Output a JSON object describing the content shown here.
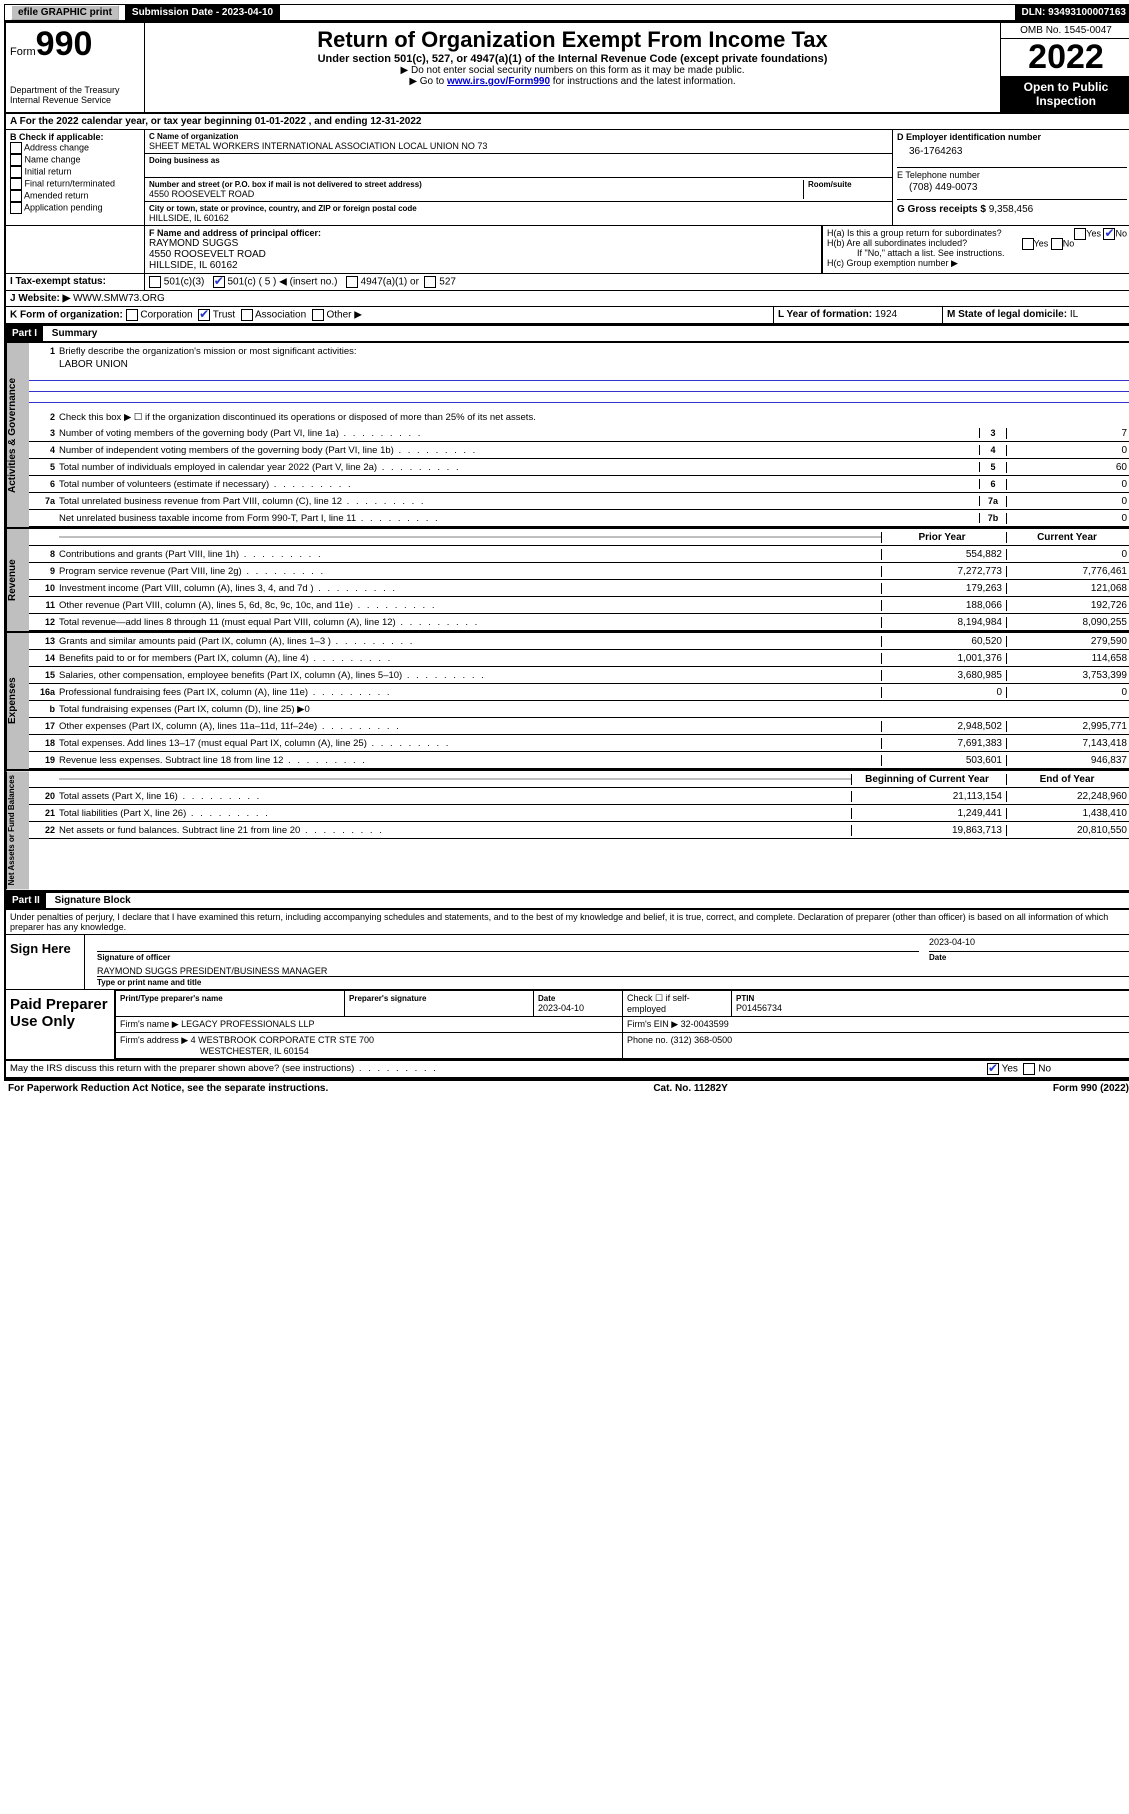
{
  "topbar": {
    "efile": "efile GRAPHIC print",
    "sub_label": "Submission Date - 2023-04-10",
    "dln": "DLN: 93493100007163"
  },
  "header": {
    "form_word": "Form",
    "form_num": "990",
    "title": "Return of Organization Exempt From Income Tax",
    "subtitle": "Under section 501(c), 527, or 4947(a)(1) of the Internal Revenue Code (except private foundations)",
    "note1": "▶ Do not enter social security numbers on this form as it may be made public.",
    "note2_pre": "▶ Go to ",
    "note2_link": "www.irs.gov/Form990",
    "note2_post": " for instructions and the latest information.",
    "dept": "Department of the Treasury",
    "irs": "Internal Revenue Service",
    "omb": "OMB No. 1545-0047",
    "year": "2022",
    "open": "Open to Public Inspection"
  },
  "sectionA": "A For the 2022 calendar year, or tax year beginning 01-01-2022   , and ending 12-31-2022",
  "boxB": {
    "title": "B Check if applicable:",
    "opts": [
      "Address change",
      "Name change",
      "Initial return",
      "Final return/terminated",
      "Amended return",
      "Application pending"
    ]
  },
  "boxC": {
    "name_label": "C Name of organization",
    "name": "SHEET METAL WORKERS INTERNATIONAL ASSOCIATION LOCAL UNION NO 73",
    "dba_label": "Doing business as",
    "addr_label": "Number and street (or P.O. box if mail is not delivered to street address)",
    "room_label": "Room/suite",
    "addr": "4550 ROOSEVELT ROAD",
    "city_label": "City or town, state or province, country, and ZIP or foreign postal code",
    "city": "HILLSIDE, IL  60162"
  },
  "boxD": {
    "label": "D Employer identification number",
    "val": "36-1764263"
  },
  "boxE": {
    "label": "E Telephone number",
    "val": "(708) 449-0073"
  },
  "boxG": {
    "label": "G Gross receipts $",
    "val": "9,358,456"
  },
  "boxF": {
    "label": "F Name and address of principal officer:",
    "name": "RAYMOND SUGGS",
    "addr": "4550 ROOSEVELT ROAD",
    "city": "HILLSIDE, IL  60162"
  },
  "boxH": {
    "ha": "H(a)  Is this a group return for subordinates?",
    "hb": "H(b)  Are all subordinates included?",
    "hb_note": "If \"No,\" attach a list. See instructions.",
    "hc": "H(c)  Group exemption number ▶"
  },
  "boxI": {
    "label": "I    Tax-exempt status:",
    "c3": "501(c)(3)",
    "c5": "501(c) ( 5 ) ◀ (insert no.)",
    "a1": "4947(a)(1) or",
    "s527": "527"
  },
  "boxJ": {
    "label": "J    Website: ▶",
    "val": "WWW.SMW73.ORG"
  },
  "boxK": {
    "label": "K Form of organization:",
    "opts": [
      "Corporation",
      "Trust",
      "Association",
      "Other ▶"
    ]
  },
  "boxL": {
    "label": "L Year of formation:",
    "val": "1924"
  },
  "boxM": {
    "label": "M State of legal domicile:",
    "val": "IL"
  },
  "part1": {
    "tag": "Part I",
    "title": "Summary"
  },
  "summary": {
    "l1": "Briefly describe the organization's mission or most significant activities:",
    "mission": "LABOR UNION",
    "l2": "Check this box ▶ ☐ if the organization discontinued its operations or disposed of more than 25% of its net assets.",
    "lines_single": [
      {
        "n": "3",
        "t": "Number of voting members of the governing body (Part VI, line 1a)",
        "box": "3",
        "v": "7"
      },
      {
        "n": "4",
        "t": "Number of independent voting members of the governing body (Part VI, line 1b)",
        "box": "4",
        "v": "0"
      },
      {
        "n": "5",
        "t": "Total number of individuals employed in calendar year 2022 (Part V, line 2a)",
        "box": "5",
        "v": "60"
      },
      {
        "n": "6",
        "t": "Total number of volunteers (estimate if necessary)",
        "box": "6",
        "v": "0"
      },
      {
        "n": "7a",
        "t": "Total unrelated business revenue from Part VIII, column (C), line 12",
        "box": "7a",
        "v": "0"
      },
      {
        "n": "",
        "t": "Net unrelated business taxable income from Form 990-T, Part I, line 11",
        "box": "7b",
        "v": "0"
      }
    ],
    "col_prior": "Prior Year",
    "col_current": "Current Year",
    "revenue": [
      {
        "n": "8",
        "t": "Contributions and grants (Part VIII, line 1h)",
        "p": "554,882",
        "c": "0"
      },
      {
        "n": "9",
        "t": "Program service revenue (Part VIII, line 2g)",
        "p": "7,272,773",
        "c": "7,776,461"
      },
      {
        "n": "10",
        "t": "Investment income (Part VIII, column (A), lines 3, 4, and 7d )",
        "p": "179,263",
        "c": "121,068"
      },
      {
        "n": "11",
        "t": "Other revenue (Part VIII, column (A), lines 5, 6d, 8c, 9c, 10c, and 11e)",
        "p": "188,066",
        "c": "192,726"
      },
      {
        "n": "12",
        "t": "Total revenue—add lines 8 through 11 (must equal Part VIII, column (A), line 12)",
        "p": "8,194,984",
        "c": "8,090,255"
      }
    ],
    "expenses": [
      {
        "n": "13",
        "t": "Grants and similar amounts paid (Part IX, column (A), lines 1–3 )",
        "p": "60,520",
        "c": "279,590"
      },
      {
        "n": "14",
        "t": "Benefits paid to or for members (Part IX, column (A), line 4)",
        "p": "1,001,376",
        "c": "114,658"
      },
      {
        "n": "15",
        "t": "Salaries, other compensation, employee benefits (Part IX, column (A), lines 5–10)",
        "p": "3,680,985",
        "c": "3,753,399"
      },
      {
        "n": "16a",
        "t": "Professional fundraising fees (Part IX, column (A), line 11e)",
        "p": "0",
        "c": "0"
      },
      {
        "n": "b",
        "t": "Total fundraising expenses (Part IX, column (D), line 25) ▶0",
        "p": "",
        "c": "",
        "grey": true
      },
      {
        "n": "17",
        "t": "Other expenses (Part IX, column (A), lines 11a–11d, 11f–24e)",
        "p": "2,948,502",
        "c": "2,995,771"
      },
      {
        "n": "18",
        "t": "Total expenses. Add lines 13–17 (must equal Part IX, column (A), line 25)",
        "p": "7,691,383",
        "c": "7,143,418"
      },
      {
        "n": "19",
        "t": "Revenue less expenses. Subtract line 18 from line 12",
        "p": "503,601",
        "c": "946,837"
      }
    ],
    "col_begin": "Beginning of Current Year",
    "col_end": "End of Year",
    "netassets": [
      {
        "n": "20",
        "t": "Total assets (Part X, line 16)",
        "p": "21,113,154",
        "c": "22,248,960"
      },
      {
        "n": "21",
        "t": "Total liabilities (Part X, line 26)",
        "p": "1,249,441",
        "c": "1,438,410"
      },
      {
        "n": "22",
        "t": "Net assets or fund balances. Subtract line 21 from line 20",
        "p": "19,863,713",
        "c": "20,810,550"
      }
    ]
  },
  "vert": {
    "gov": "Activities & Governance",
    "rev": "Revenue",
    "exp": "Expenses",
    "net": "Net Assets or Fund Balances"
  },
  "part2": {
    "tag": "Part II",
    "title": "Signature Block"
  },
  "sig": {
    "perjury": "Under penalties of perjury, I declare that I have examined this return, including accompanying schedules and statements, and to the best of my knowledge and belief, it is true, correct, and complete. Declaration of preparer (other than officer) is based on all information of which preparer has any knowledge.",
    "sign_here": "Sign Here",
    "sig_officer": "Signature of officer",
    "date": "Date",
    "date_val": "2023-04-10",
    "officer_name": "RAYMOND SUGGS  PRESIDENT/BUSINESS MANAGER",
    "type_name": "Type or print name and title",
    "paid": "Paid Preparer Use Only",
    "prep_name_label": "Print/Type preparer's name",
    "prep_sig_label": "Preparer's signature",
    "prep_date_label": "Date",
    "prep_date": "2023-04-10",
    "self_emp": "Check ☐ if self-employed",
    "ptin_label": "PTIN",
    "ptin": "P01456734",
    "firm_name_label": "Firm's name    ▶",
    "firm_name": "LEGACY PROFESSIONALS LLP",
    "firm_ein_label": "Firm's EIN ▶",
    "firm_ein": "32-0043599",
    "firm_addr_label": "Firm's address ▶",
    "firm_addr": "4 WESTBROOK CORPORATE CTR STE 700",
    "firm_city": "WESTCHESTER, IL  60154",
    "firm_phone_label": "Phone no.",
    "firm_phone": "(312) 368-0500",
    "discuss": "May the IRS discuss this return with the preparer shown above? (see instructions)"
  },
  "footer": {
    "pra": "For Paperwork Reduction Act Notice, see the separate instructions.",
    "cat": "Cat. No. 11282Y",
    "form": "Form 990 (2022)"
  }
}
